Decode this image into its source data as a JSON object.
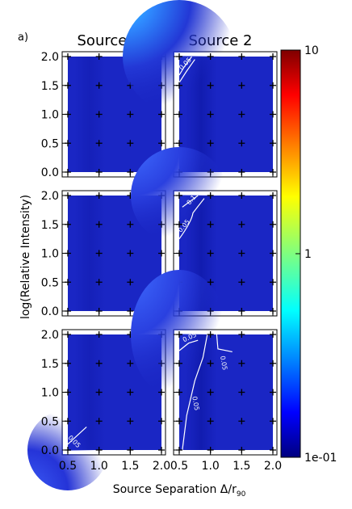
{
  "figure_label": "a)",
  "column_titles": [
    "Source 1",
    "Source 2"
  ],
  "ylabel": "log(Relative Intensity)",
  "xlabel_main": "Source Separation Δ/r",
  "xlabel_sub": "90",
  "x_tick_labels_left": [
    "0.5",
    "1.0",
    "1.5",
    "2.0"
  ],
  "x_tick_labels_right": [
    "0.5",
    "1.0",
    "1.5",
    "2.0"
  ],
  "y_tick_labels": [
    "0.0",
    "0.5",
    "1.0",
    "1.5",
    "2.0"
  ],
  "colorbar": {
    "scale": "log",
    "min": 0.1,
    "max": 10,
    "tick_labels": [
      "1e-01",
      "1",
      "10"
    ],
    "tick_values": [
      0.1,
      1,
      10
    ],
    "colormap": "jet"
  },
  "chart_data": {
    "type": "heatmap",
    "layout": "3 rows x 2 columns",
    "x_range": [
      0.5,
      2.0
    ],
    "y_range": [
      0.0,
      2.0
    ],
    "grid_points_x": [
      0.5,
      1.0,
      1.5,
      2.0
    ],
    "grid_points_y": [
      0.0,
      0.5,
      1.0,
      1.5,
      2.0
    ],
    "panels": [
      {
        "row": 0,
        "col": 0,
        "column_title": "Source 1",
        "contour_labels": []
      },
      {
        "row": 0,
        "col": 1,
        "column_title": "Source 2",
        "contour_labels": [
          "0.05"
        ]
      },
      {
        "row": 1,
        "col": 0,
        "column_title": "Source 1",
        "contour_labels": []
      },
      {
        "row": 1,
        "col": 1,
        "column_title": "Source 2",
        "contour_labels": [
          "0.05",
          "0.1"
        ]
      },
      {
        "row": 2,
        "col": 0,
        "column_title": "Source 1",
        "contour_labels": [
          "0.05"
        ]
      },
      {
        "row": 2,
        "col": 1,
        "column_title": "Source 2",
        "contour_labels": [
          "0.05",
          "0.05",
          "0.05"
        ]
      }
    ]
  }
}
